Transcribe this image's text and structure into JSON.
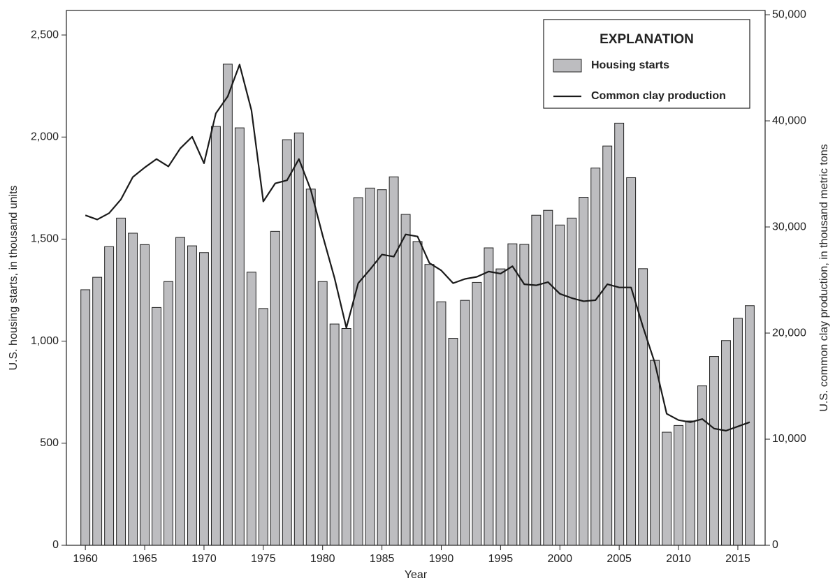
{
  "chart_data": {
    "type": "bar+line",
    "xlabel": "Year",
    "ylabel": "U.S. housing starts, in thousand units",
    "y2label": "U.S. common clay production, in thousand metric tons",
    "legend_title": "EXPLANATION",
    "legend": "upper right",
    "x": [
      1960,
      1961,
      1962,
      1963,
      1964,
      1965,
      1966,
      1967,
      1968,
      1969,
      1970,
      1971,
      1972,
      1973,
      1974,
      1975,
      1976,
      1977,
      1978,
      1979,
      1980,
      1981,
      1982,
      1983,
      1984,
      1985,
      1986,
      1987,
      1988,
      1989,
      1990,
      1991,
      1992,
      1993,
      1994,
      1995,
      1996,
      1997,
      1998,
      1999,
      2000,
      2001,
      2002,
      2003,
      2004,
      2005,
      2006,
      2007,
      2008,
      2009,
      2010,
      2011,
      2012,
      2013,
      2014,
      2015,
      2016
    ],
    "series": [
      {
        "name": "Housing starts",
        "type": "bar",
        "color": "#bdbdc0",
        "values": [
          1252,
          1313,
          1463,
          1603,
          1529,
          1473,
          1165,
          1292,
          1508,
          1467,
          1434,
          2052,
          2357,
          2045,
          1338,
          1160,
          1538,
          1987,
          2020,
          1745,
          1292,
          1084,
          1062,
          1703,
          1750,
          1742,
          1805,
          1621,
          1488,
          1376,
          1193,
          1014,
          1200,
          1288,
          1457,
          1354,
          1477,
          1474,
          1617,
          1641,
          1569,
          1603,
          1705,
          1848,
          1956,
          2068,
          1801,
          1355,
          906,
          554,
          587,
          609,
          781,
          925,
          1003,
          1112,
          1174
        ]
      },
      {
        "name": "Common clay production",
        "type": "line",
        "color": "#1a1a1a",
        "axis": "y2",
        "values": [
          31100,
          30700,
          31300,
          32600,
          34700,
          35600,
          36400,
          35700,
          37400,
          38500,
          36000,
          40700,
          42300,
          45300,
          41000,
          32400,
          34100,
          34400,
          36400,
          33500,
          29200,
          25200,
          20500,
          24700,
          26000,
          27400,
          27200,
          29300,
          29100,
          26600,
          25900,
          24700,
          25100,
          25300,
          25800,
          25600,
          26300,
          24600,
          24500,
          24800,
          23700,
          23300,
          23000,
          23100,
          24600,
          24300,
          24300,
          20600,
          17200,
          12400,
          11800,
          11600,
          11900,
          11000,
          10800,
          11200,
          11600
        ]
      }
    ],
    "xlim": [
      1958.4,
      2017.3
    ],
    "xticks": [
      1960,
      1965,
      1970,
      1975,
      1980,
      1985,
      1990,
      1995,
      2000,
      2005,
      2010,
      2015
    ],
    "ylim": [
      0,
      2620
    ],
    "yticks": [
      0,
      500,
      {
        "value": 1000,
        "label": "1,000"
      },
      {
        "value": 1500,
        "label": "1,500"
      },
      {
        "value": 2000,
        "label": "2,000"
      },
      {
        "value": 2500,
        "label": "2,500"
      }
    ],
    "y2lim": [
      0,
      50400
    ],
    "y2ticks": [
      0,
      {
        "value": 10000,
        "label": "10,000"
      },
      {
        "value": 20000,
        "label": "20,000"
      },
      {
        "value": 30000,
        "label": "30,000"
      },
      {
        "value": 40000,
        "label": "40,000"
      },
      {
        "value": 50000,
        "label": "50,000"
      }
    ]
  }
}
